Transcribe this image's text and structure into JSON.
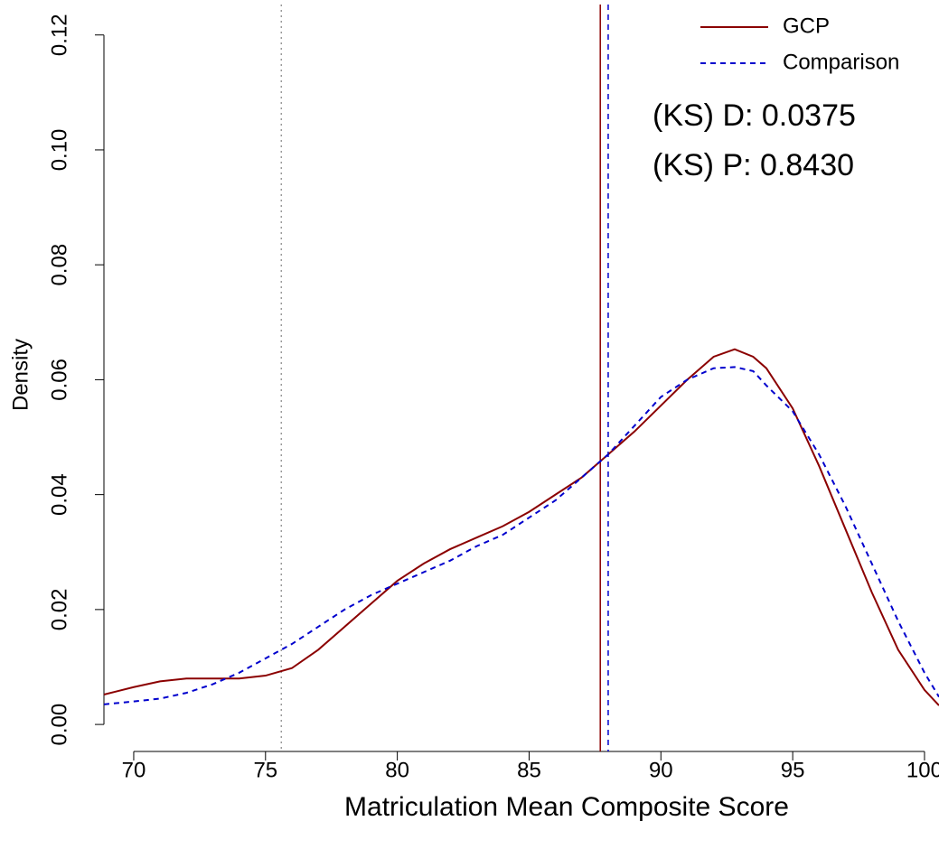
{
  "chart_data": {
    "type": "line",
    "xlabel": "Matriculation Mean Composite Score",
    "ylabel": "Density",
    "x": [
      68.87,
      70,
      71,
      72,
      73,
      74,
      75,
      76,
      77,
      78,
      79,
      80,
      81,
      82,
      83,
      84,
      85,
      86,
      87,
      88,
      89,
      90,
      91,
      92,
      92.8,
      93.5,
      94,
      95,
      96,
      97,
      98,
      99,
      100,
      100.55
    ],
    "series": [
      {
        "name": "GCP",
        "color": "#8b0000",
        "dash": "none",
        "values": [
          0.0052,
          0.0065,
          0.0075,
          0.008,
          0.008,
          0.008,
          0.0085,
          0.0098,
          0.013,
          0.017,
          0.021,
          0.025,
          0.028,
          0.0305,
          0.0325,
          0.0345,
          0.037,
          0.04,
          0.043,
          0.047,
          0.051,
          0.0555,
          0.06,
          0.064,
          0.0653,
          0.064,
          0.062,
          0.055,
          0.045,
          0.034,
          0.023,
          0.013,
          0.006,
          0.0033
        ]
      },
      {
        "name": "Comparison",
        "color": "#0000cd",
        "dash": "6,5",
        "values": [
          0.0035,
          0.004,
          0.0045,
          0.0055,
          0.007,
          0.009,
          0.0115,
          0.014,
          0.017,
          0.02,
          0.0225,
          0.0245,
          0.0265,
          0.0285,
          0.031,
          0.033,
          0.036,
          0.039,
          0.043,
          0.047,
          0.052,
          0.057,
          0.06,
          0.062,
          0.0622,
          0.0615,
          0.059,
          0.0545,
          0.047,
          0.038,
          0.028,
          0.018,
          0.009,
          0.0048
        ]
      }
    ],
    "vlines": [
      {
        "x": 75.6,
        "color": "#999999",
        "dash": "2,4"
      },
      {
        "x": 87.7,
        "color": "#8b0000",
        "dash": "none"
      },
      {
        "x": 88.0,
        "color": "#0000cd",
        "dash": "6,5"
      }
    ],
    "annotations": [
      "(KS) D: 0.0375",
      "(KS) P: 0.8430"
    ],
    "legend": "topright",
    "xlim": [
      68.87,
      100.55
    ],
    "ylim": [
      -0.0047,
      0.1253
    ],
    "xticks": [
      70,
      75,
      80,
      85,
      90,
      95,
      100
    ],
    "yticks": [
      {
        "value": 0,
        "label": "0.00"
      },
      {
        "value": 0.02,
        "label": "0.02"
      },
      {
        "value": 0.04,
        "label": "0.04"
      },
      {
        "value": 0.06,
        "label": "0.06"
      },
      {
        "value": 0.08,
        "label": "0.08"
      },
      {
        "value": 0.1,
        "label": "0.10"
      },
      {
        "value": 0.12,
        "label": "0.12"
      }
    ]
  }
}
